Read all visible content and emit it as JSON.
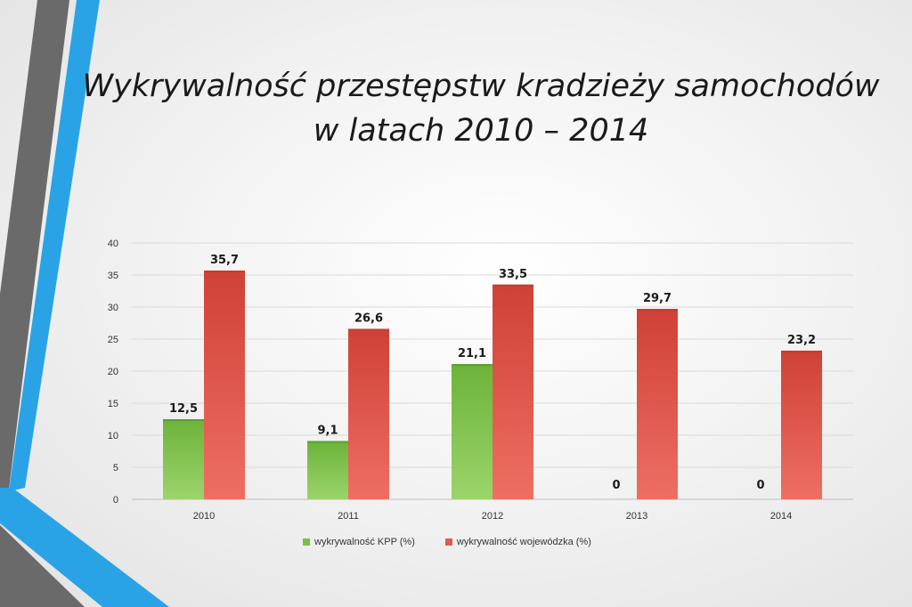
{
  "title": {
    "line1": "Wykrywalność przestępstw kradzieży samochodów",
    "line2": "w latach 2010 – 2014"
  },
  "colors": {
    "green": "#7ac143",
    "red": "#e05a4e",
    "blue": "#2aa6e6",
    "gray": "#666666"
  },
  "chart_data": {
    "type": "bar",
    "categories": [
      "2010",
      "2011",
      "2012",
      "2013",
      "2014"
    ],
    "series": [
      {
        "name": "wykrywalność KPP (%)",
        "values": [
          12.5,
          9.1,
          21.1,
          0,
          0
        ],
        "labels": [
          "12,5",
          "9,1",
          "21,1",
          "0",
          "0"
        ]
      },
      {
        "name": "wykrywalność wojewódzka (%)",
        "values": [
          35.7,
          26.6,
          33.5,
          29.7,
          23.2
        ],
        "labels": [
          "35,7",
          "26,6",
          "33,5",
          "29,7",
          "23,2"
        ]
      }
    ],
    "ylim": [
      0,
      40
    ],
    "yticks": [
      "0",
      "5",
      "10",
      "15",
      "20",
      "25",
      "30",
      "35",
      "40"
    ],
    "grid": true,
    "legend": "bottom"
  }
}
